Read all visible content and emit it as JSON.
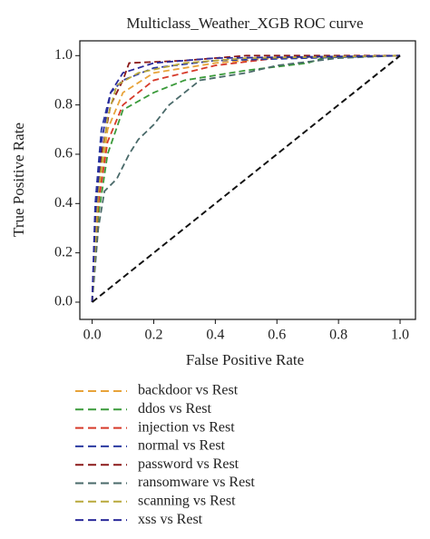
{
  "chart_data": {
    "type": "line",
    "title": "Multiclass_Weather_XGB ROC curve",
    "x_label": "False Positive Rate",
    "y_label": "True Positive Rate",
    "xlim": [
      -0.04,
      1.05
    ],
    "ylim": [
      -0.07,
      1.06
    ],
    "xticks": [
      {
        "value": 0,
        "label": "0.0"
      },
      0.2,
      0.4,
      0.6,
      0.8,
      {
        "value": 1,
        "label": "1.0"
      }
    ],
    "yticks": [
      {
        "value": 0,
        "label": "0.0"
      },
      0.2,
      0.4,
      0.6,
      0.8,
      {
        "value": 1,
        "label": "1.0"
      }
    ],
    "reference_line": {
      "x": [
        0,
        1
      ],
      "values": [
        0,
        1
      ],
      "color": "#111111"
    },
    "series": [
      {
        "name": "backdoor vs Rest",
        "color": "#e8a33a",
        "x": [
          0,
          0.02,
          0.05,
          0.1,
          0.2,
          0.4,
          0.6,
          1
        ],
        "values": [
          0,
          0.4,
          0.7,
          0.85,
          0.93,
          0.97,
          0.99,
          1
        ]
      },
      {
        "name": "ddos vs Rest",
        "color": "#3a9a3a",
        "x": [
          0,
          0.02,
          0.05,
          0.1,
          0.2,
          0.3,
          0.5,
          0.7,
          0.75,
          1
        ],
        "values": [
          0,
          0.35,
          0.6,
          0.78,
          0.85,
          0.9,
          0.94,
          0.97,
          0.99,
          1
        ]
      },
      {
        "name": "injection vs Rest",
        "color": "#d63a2a",
        "x": [
          0,
          0.02,
          0.05,
          0.1,
          0.2,
          0.4,
          0.6,
          1
        ],
        "values": [
          0,
          0.4,
          0.65,
          0.8,
          0.9,
          0.96,
          0.99,
          1
        ]
      },
      {
        "name": "normal vs Rest",
        "color": "#2a3aa0",
        "x": [
          0,
          0.01,
          0.03,
          0.06,
          0.1,
          0.2,
          0.4,
          1
        ],
        "values": [
          0,
          0.4,
          0.7,
          0.85,
          0.9,
          0.95,
          0.98,
          1
        ]
      },
      {
        "name": "password vs Rest",
        "color": "#8b1a1a",
        "x": [
          0,
          0.01,
          0.03,
          0.06,
          0.1,
          0.12,
          0.3,
          0.5,
          1
        ],
        "values": [
          0,
          0.3,
          0.6,
          0.8,
          0.9,
          0.97,
          0.98,
          1,
          1
        ]
      },
      {
        "name": "ransomware vs Rest",
        "color": "#4a6a6a",
        "x": [
          0,
          0.02,
          0.04,
          0.08,
          0.12,
          0.15,
          0.2,
          0.25,
          0.3,
          0.35,
          0.5,
          0.6,
          0.8,
          1
        ],
        "values": [
          0,
          0.3,
          0.45,
          0.5,
          0.6,
          0.66,
          0.72,
          0.8,
          0.85,
          0.9,
          0.93,
          0.96,
          0.99,
          1
        ]
      },
      {
        "name": "scanning vs Rest",
        "color": "#b8a83a",
        "x": [
          0,
          0.02,
          0.05,
          0.08,
          0.15,
          0.3,
          0.5,
          1
        ],
        "values": [
          0,
          0.45,
          0.75,
          0.88,
          0.93,
          0.97,
          0.99,
          1
        ]
      },
      {
        "name": "xss vs Rest",
        "color": "#2a2a9a",
        "x": [
          0,
          0.01,
          0.03,
          0.06,
          0.1,
          0.2,
          0.4,
          1
        ],
        "values": [
          0,
          0.35,
          0.65,
          0.85,
          0.93,
          0.97,
          0.99,
          1
        ]
      }
    ]
  }
}
